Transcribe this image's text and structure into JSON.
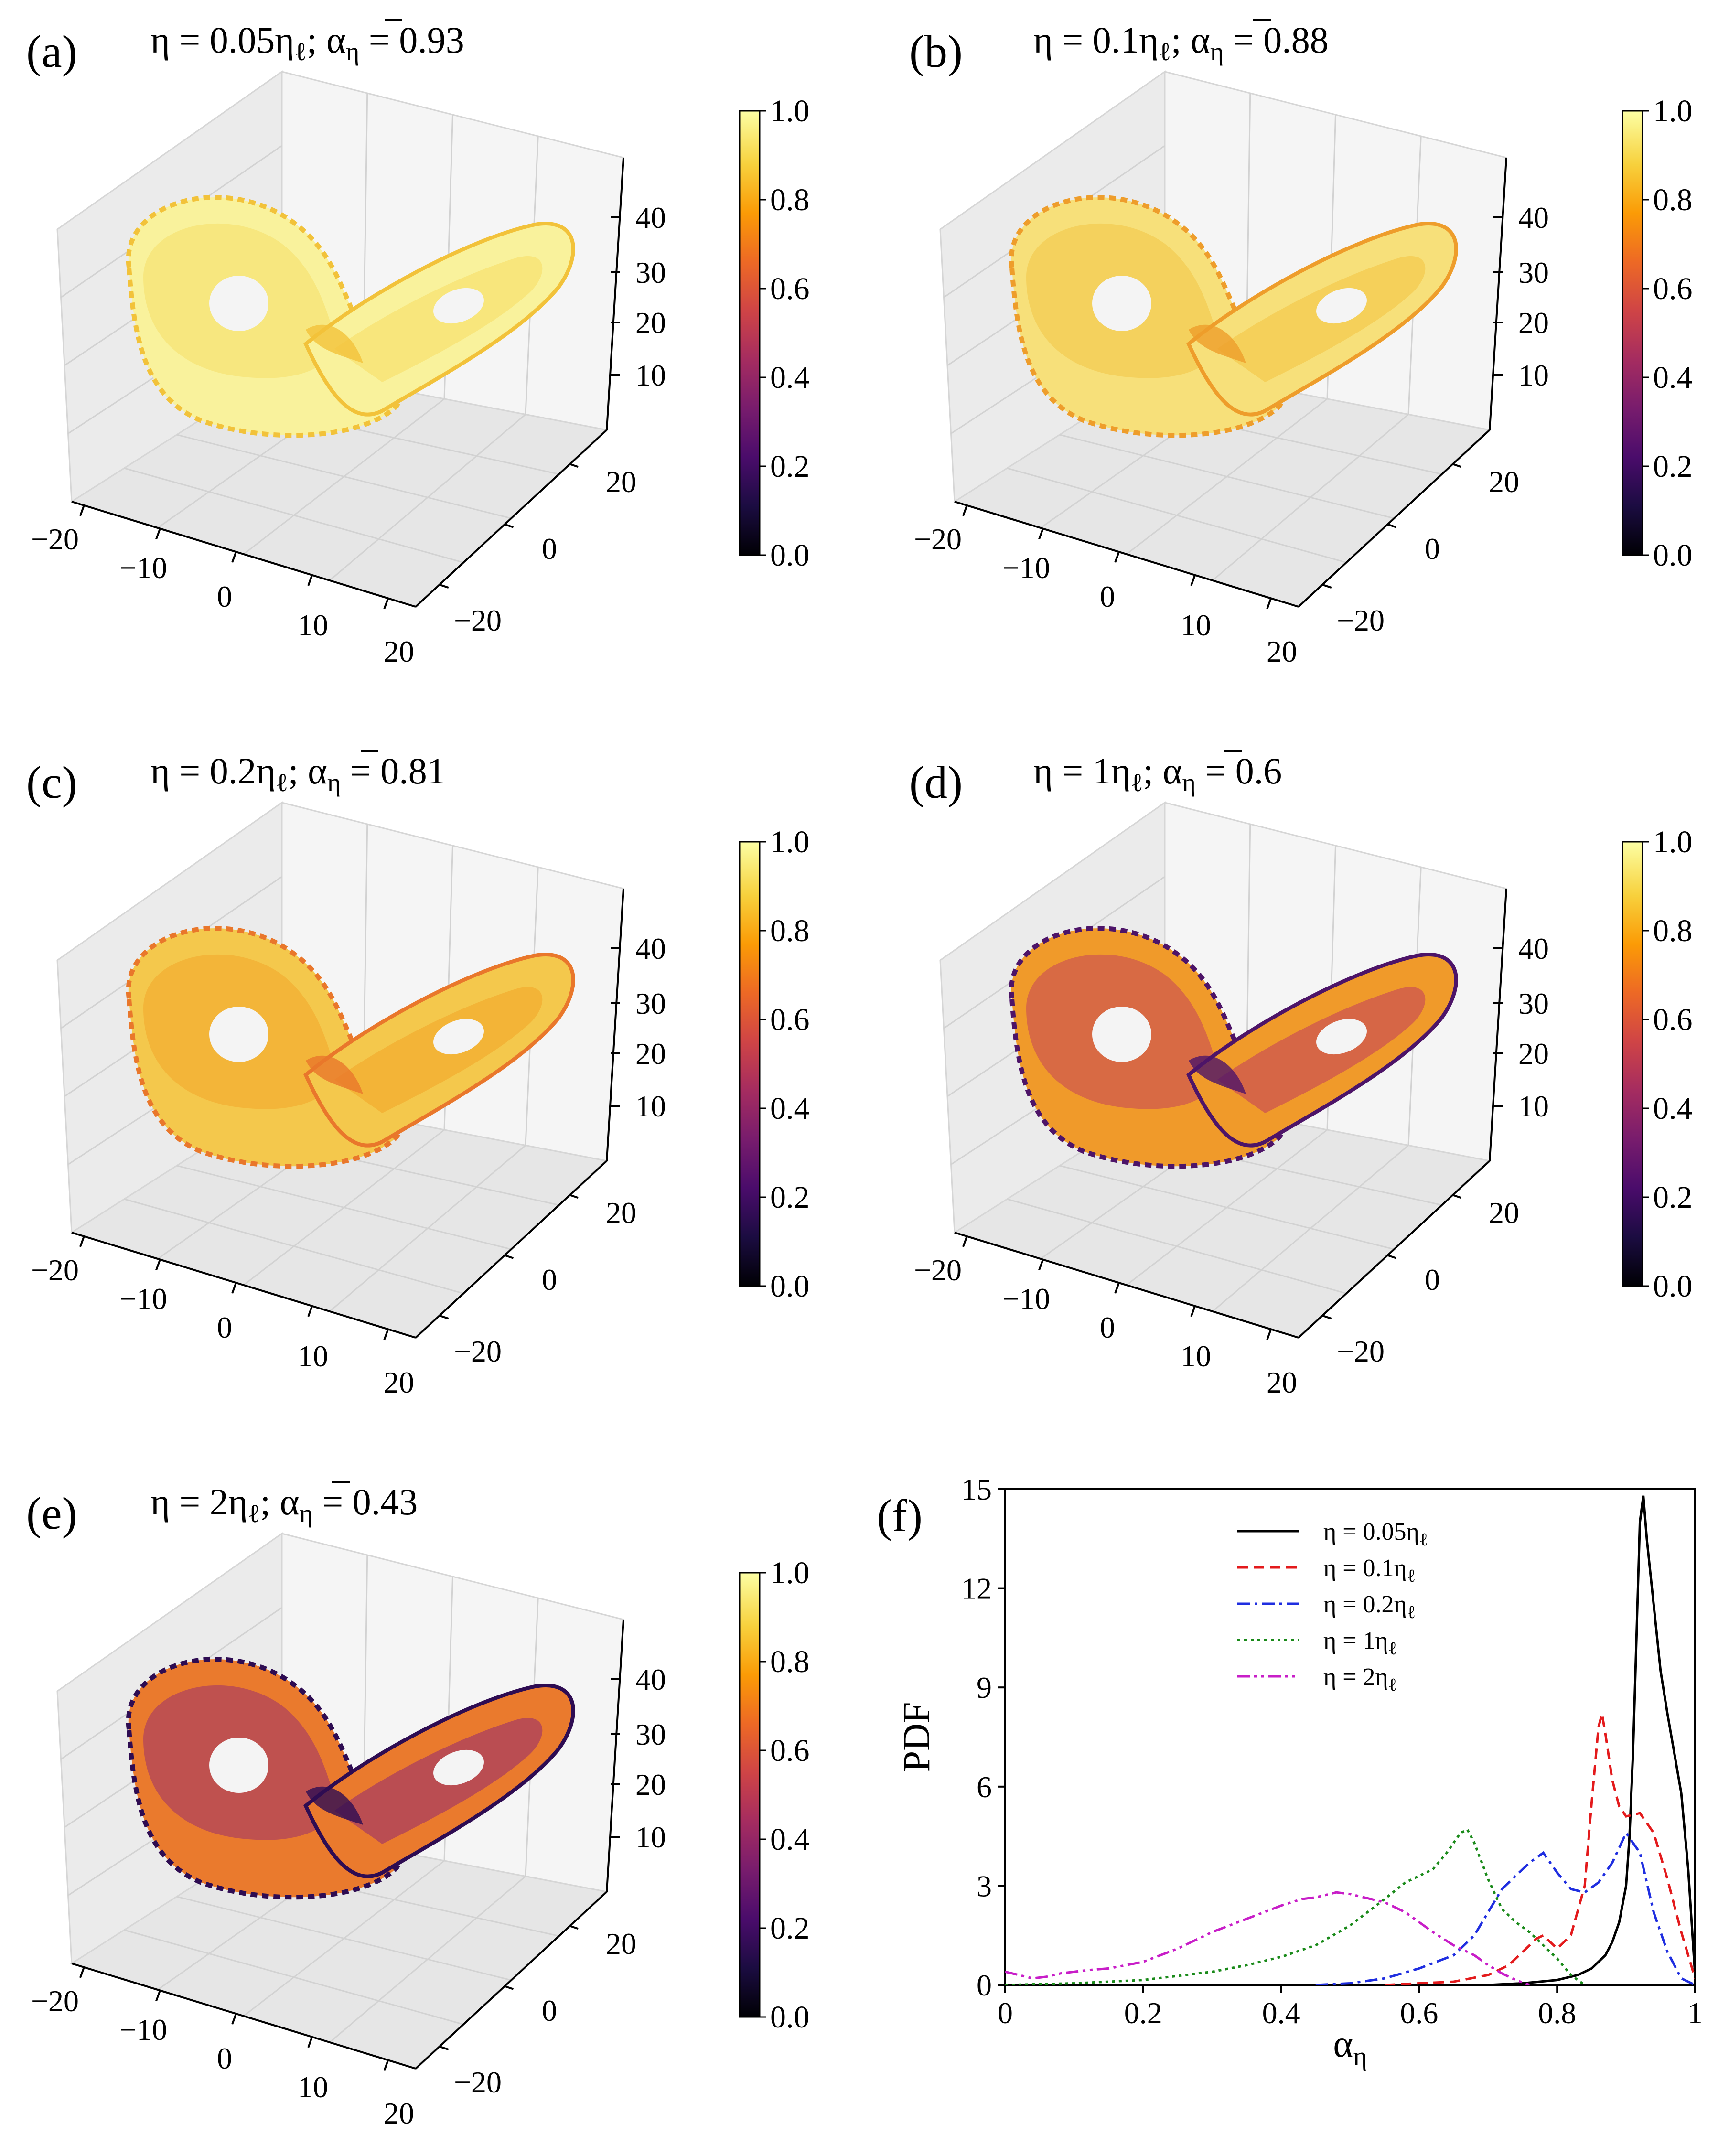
{
  "panels": [
    {
      "label": "(a)",
      "eta": "η = 0.05η",
      "alpha": "; α",
      "mean": " = 0.93",
      "attractor_fill": [
        "#f9f29c",
        "#f6de68",
        "#f2c23a"
      ]
    },
    {
      "label": "(b)",
      "eta": "η = 0.1η",
      "alpha": "; α",
      "mean": " = 0.88",
      "attractor_fill": [
        "#f7e07a",
        "#f3c545",
        "#ee9d2b"
      ]
    },
    {
      "label": "(c)",
      "eta": "η = 0.2η",
      "alpha": "; α",
      "mean": " = 0.81",
      "attractor_fill": [
        "#f4c84c",
        "#f2a62a",
        "#e9772b"
      ]
    },
    {
      "label": "(d)",
      "eta": "η = 1η",
      "alpha": "; α",
      "mean": " = 0.6",
      "attractor_fill": [
        "#f09a2a",
        "#c4445a",
        "#4d1468"
      ]
    },
    {
      "label": "(e)",
      "eta": "η = 2η",
      "alpha": "; α",
      "mean": " = 0.43",
      "attractor_fill": [
        "#ea7a2d",
        "#9a2f6b",
        "#2e0c52"
      ]
    }
  ],
  "subscripts": {
    "ell": "ℓ",
    "eta": "η"
  },
  "axes3d": {
    "z_ticks": [
      "10",
      "20",
      "30",
      "40"
    ],
    "x_ticks": [
      "−20",
      "−10",
      "0",
      "10",
      "20"
    ],
    "y_ticks": [
      "−20",
      "0",
      "20"
    ]
  },
  "colorbar": {
    "ticks": [
      "0.0",
      "0.2",
      "0.4",
      "0.6",
      "0.8",
      "1.0"
    ],
    "colors": [
      "#000004",
      "#1b0c41",
      "#4a0c6b",
      "#781c6d",
      "#a52c60",
      "#cf4446",
      "#ed6925",
      "#fb9b06",
      "#f7d13d",
      "#fcffa4"
    ]
  },
  "panel_f": {
    "label": "(f)",
    "xlabel": "α",
    "xlabel_sub": "η",
    "ylabel": "PDF"
  },
  "chart_data": {
    "type": "line",
    "title": "",
    "xlabel": "α_η",
    "ylabel": "PDF",
    "xlim": [
      0,
      1
    ],
    "ylim": [
      0,
      15
    ],
    "x_ticks": [
      "0",
      "0.2",
      "0.4",
      "0.6",
      "0.8",
      "1"
    ],
    "y_ticks": [
      "0",
      "3",
      "6",
      "9",
      "12",
      "15"
    ],
    "legend_position": "top-left",
    "series": [
      {
        "name": "η = 0.05η",
        "name_sub": "ℓ",
        "color": "#000000",
        "dash": "solid",
        "x": [
          0.7,
          0.75,
          0.8,
          0.83,
          0.85,
          0.87,
          0.88,
          0.89,
          0.9,
          0.905,
          0.91,
          0.915,
          0.92,
          0.925,
          0.93,
          0.94,
          0.95,
          0.96,
          0.97,
          0.98,
          0.99,
          1.0
        ],
        "y": [
          0.0,
          0.05,
          0.15,
          0.3,
          0.5,
          0.9,
          1.3,
          1.9,
          3.0,
          4.5,
          7.0,
          10.5,
          14.0,
          14.8,
          13.5,
          11.5,
          9.5,
          8.2,
          7.0,
          5.8,
          3.5,
          0.3
        ]
      },
      {
        "name": "η = 0.1η",
        "name_sub": "ℓ",
        "color": "#e31a1c",
        "dash": "dashed",
        "x": [
          0.55,
          0.6,
          0.65,
          0.7,
          0.73,
          0.75,
          0.77,
          0.78,
          0.79,
          0.8,
          0.82,
          0.84,
          0.85,
          0.86,
          0.865,
          0.87,
          0.88,
          0.89,
          0.9,
          0.92,
          0.94,
          0.96,
          0.98,
          1.0
        ],
        "y": [
          0.0,
          0.05,
          0.1,
          0.3,
          0.6,
          1.0,
          1.4,
          1.5,
          1.3,
          1.1,
          1.5,
          3.0,
          5.5,
          7.8,
          8.2,
          7.6,
          6.2,
          5.4,
          5.1,
          5.2,
          4.6,
          3.2,
          1.6,
          0.2
        ]
      },
      {
        "name": "η = 0.2η",
        "name_sub": "ℓ",
        "color": "#1f2ee0",
        "dash": "dashdot",
        "x": [
          0.45,
          0.5,
          0.55,
          0.6,
          0.65,
          0.68,
          0.7,
          0.72,
          0.74,
          0.76,
          0.78,
          0.8,
          0.82,
          0.84,
          0.86,
          0.88,
          0.9,
          0.92,
          0.94,
          0.96,
          0.98,
          1.0
        ],
        "y": [
          0.0,
          0.05,
          0.2,
          0.5,
          0.9,
          1.5,
          2.2,
          2.9,
          3.3,
          3.7,
          4.0,
          3.4,
          2.9,
          2.8,
          3.1,
          3.7,
          4.6,
          4.0,
          2.2,
          1.0,
          0.2,
          0.0
        ]
      },
      {
        "name": "η = 1η",
        "name_sub": "ℓ",
        "color": "#1a8a1a",
        "dash": "dotted",
        "x": [
          0.0,
          0.1,
          0.2,
          0.3,
          0.35,
          0.4,
          0.45,
          0.5,
          0.55,
          0.58,
          0.6,
          0.62,
          0.64,
          0.66,
          0.67,
          0.68,
          0.7,
          0.72,
          0.74,
          0.76,
          0.78,
          0.8,
          0.82,
          0.84
        ],
        "y": [
          0.0,
          0.05,
          0.15,
          0.4,
          0.6,
          0.85,
          1.2,
          1.8,
          2.6,
          3.1,
          3.3,
          3.5,
          4.0,
          4.6,
          4.7,
          4.3,
          3.2,
          2.3,
          1.9,
          1.6,
          1.2,
          0.8,
          0.3,
          0.0
        ]
      },
      {
        "name": "η = 2η",
        "name_sub": "ℓ",
        "color": "#c81ec8",
        "dash": "dashdotdot",
        "x": [
          0.0,
          0.02,
          0.04,
          0.06,
          0.08,
          0.1,
          0.12,
          0.15,
          0.2,
          0.25,
          0.3,
          0.35,
          0.4,
          0.43,
          0.45,
          0.48,
          0.5,
          0.53,
          0.55,
          0.58,
          0.6,
          0.62,
          0.65,
          0.68,
          0.7,
          0.72,
          0.74,
          0.76
        ],
        "y": [
          0.4,
          0.3,
          0.2,
          0.25,
          0.35,
          0.4,
          0.45,
          0.5,
          0.7,
          1.1,
          1.6,
          2.0,
          2.4,
          2.6,
          2.65,
          2.8,
          2.75,
          2.6,
          2.5,
          2.2,
          1.9,
          1.6,
          1.2,
          0.9,
          0.6,
          0.35,
          0.15,
          0.0
        ]
      }
    ]
  }
}
